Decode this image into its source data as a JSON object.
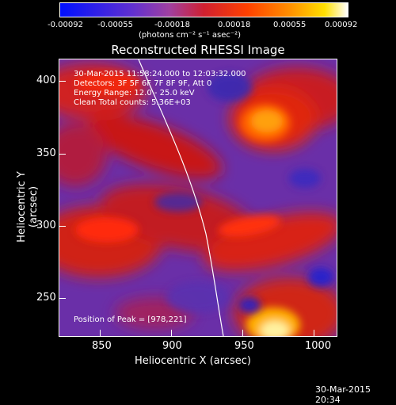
{
  "colorbar": {
    "ticks": [
      "-0.00092",
      "-0.00055",
      "-0.00018",
      "0.00018",
      "0.00055",
      "0.00092"
    ],
    "units": "(photons cm⁻² s⁻¹ asec⁻²)"
  },
  "title": "Reconstructed RHESSI Image",
  "info": {
    "time": "30-Mar-2015 11:58:24.000 to 12:03:32.000",
    "detectors": "Detectors: 3F 5F 6F 7F 8F 9F, Att 0",
    "energy": "Energy Range: 12.0 - 25.0 keV",
    "method": "Clean     Total counts: 5.36E+03",
    "peak": "Position of Peak = [978,221]"
  },
  "x_axis": {
    "label": "Heliocentric X (arcsec)",
    "ticks": [
      "850",
      "900",
      "950",
      "1000"
    ]
  },
  "y_axis": {
    "label": "Heliocentric Y (arcsec)",
    "ticks": [
      "400",
      "350",
      "300",
      "250"
    ]
  },
  "footer": "30-Mar-2015 20:34",
  "colors": {
    "background": "#000000",
    "limb_line": "#ffffff",
    "colormap": [
      "#0010ff",
      "#6030d0",
      "#a040a0",
      "#d02030",
      "#ff4000",
      "#ff9000",
      "#ffe000",
      "#ffffff"
    ]
  }
}
